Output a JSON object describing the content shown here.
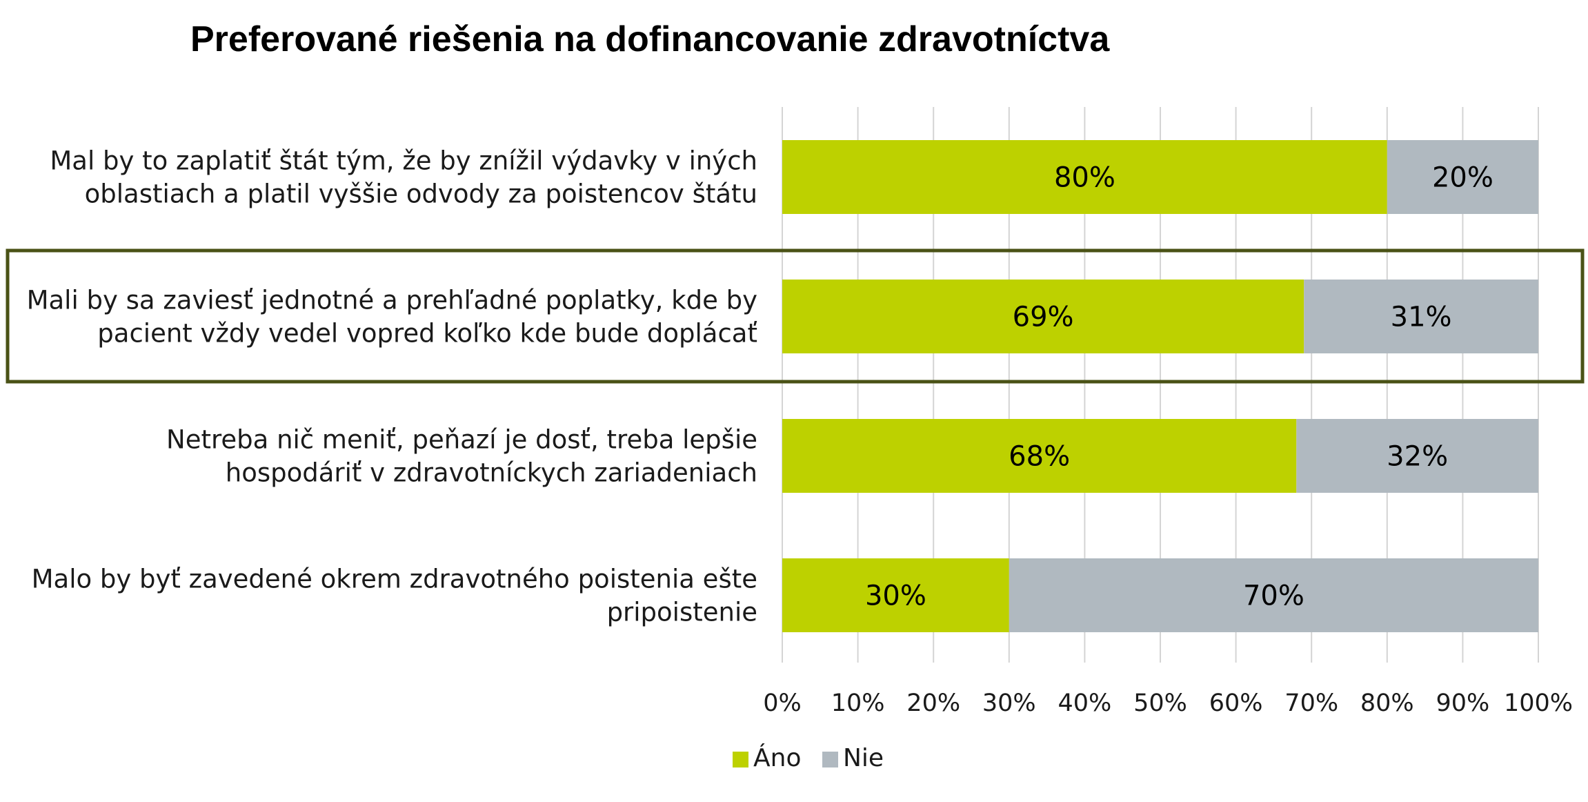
{
  "chart_data": {
    "type": "bar",
    "orientation": "horizontal",
    "stacked": true,
    "percent_stacked": true,
    "title": "Preferované riešenia na dofinancovanie zdravotníctva",
    "categories": [
      [
        "Mal by to zaplatiť štát tým, že by znížil výdavky v iných",
        "oblastiach a platil vyššie odvody za poistencov štátu"
      ],
      [
        "Mali by sa zaviesť jednotné a prehľadné poplatky, kde by",
        "pacient vždy vedel vopred koľko kde bude doplácať"
      ],
      [
        "Netreba nič meniť, peňazí je dosť, treba lepšie",
        "hospodáriť v zdravotníckych zariadeniach"
      ],
      [
        "Malo by byť zavedené okrem zdravotného poistenia ešte",
        "pripoistenie"
      ]
    ],
    "series": [
      {
        "name": "Áno",
        "values": [
          80,
          69,
          68,
          30
        ],
        "labels": [
          "80%",
          "69%",
          "68%",
          "30%"
        ],
        "color": "#bdd100"
      },
      {
        "name": "Nie",
        "values": [
          20,
          31,
          32,
          70
        ],
        "labels": [
          "20%",
          "31%",
          "32%",
          "70%"
        ],
        "color": "#b0b9c0"
      }
    ],
    "x_ticks": [
      "0%",
      "10%",
      "20%",
      "30%",
      "40%",
      "50%",
      "60%",
      "70%",
      "80%",
      "90%",
      "100%"
    ],
    "xlim": [
      0,
      100
    ],
    "xlabel": "",
    "ylabel": "",
    "grid": true,
    "legend_position": "bottom",
    "highlighted_category_index": 1,
    "highlight_color": "#4a5216"
  }
}
